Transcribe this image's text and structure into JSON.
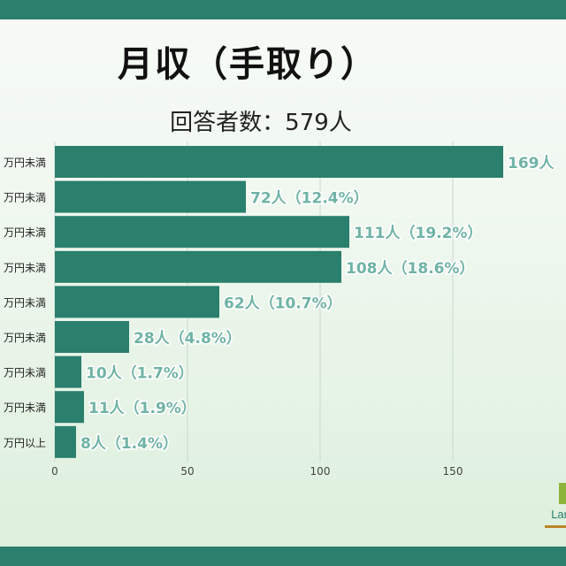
{
  "chart_data": {
    "type": "bar",
    "orientation": "horizontal",
    "title": "月収（手取り）",
    "subtitle": "回答者数：579人",
    "categories": [
      "万円未満",
      "万円未満",
      "万円未満",
      "万円未満",
      "万円未満",
      "万円未満",
      "万円未満",
      "万円未満",
      "万円以上"
    ],
    "values": [
      169,
      72,
      111,
      108,
      62,
      28,
      10,
      11,
      8
    ],
    "data_labels": [
      "169人",
      "72人（12.4%）",
      "111人（19.2%）",
      "108人（18.6%）",
      "62人（10.7%）",
      "28人（4.8%）",
      "10人（1.7%）",
      "11人（1.9%）",
      "8人（1.4%）"
    ],
    "xlim": [
      0,
      190
    ],
    "xticks": [
      0,
      50,
      100,
      150
    ],
    "xtick_labels": [
      "0",
      "50",
      "100",
      "150"
    ],
    "grid": true,
    "bar_color": "#2a7f6d",
    "label_color": "#6fb3a5",
    "grid_color": "#c9d8cc"
  },
  "logo": {
    "text": "Lar"
  }
}
